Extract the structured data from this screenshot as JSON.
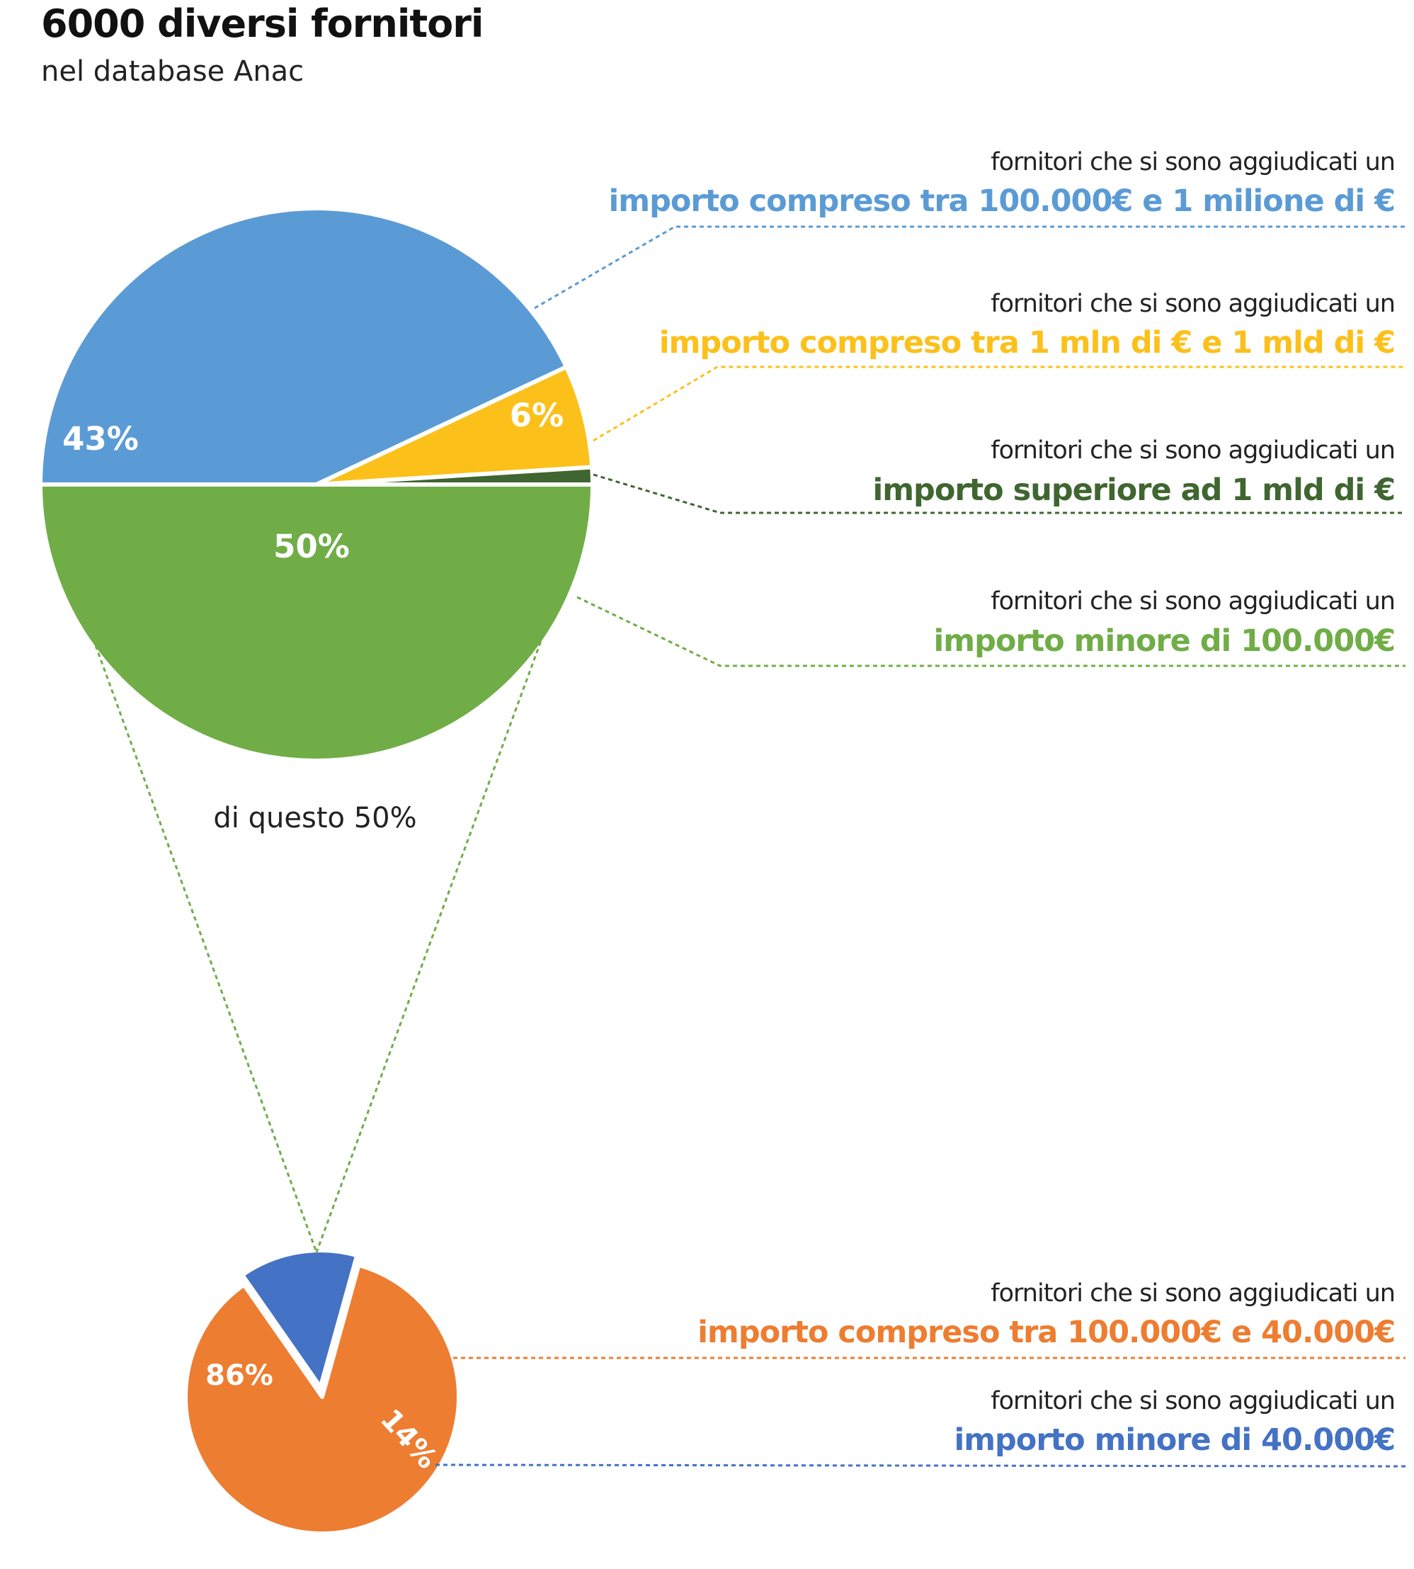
{
  "title": "6000 diversi fornitori",
  "subtitle": "nel database Anac",
  "note": "di questo 50%",
  "colors": {
    "blue": "#5b9bd5",
    "yellow": "#fcc01b",
    "darkgreen": "#3f6630",
    "green": "#70ad47",
    "orange": "#ed7d31",
    "navy": "#4472c4"
  },
  "chart_data": [
    {
      "type": "pie",
      "slices": [
        {
          "label": "43%",
          "value": 43,
          "color": "#5b9bd5",
          "legend_small": "fornitori che si sono aggiudicati un",
          "legend_big": "importo compreso tra 100.000€ e 1 milione di €"
        },
        {
          "label": "6%",
          "value": 6,
          "color": "#fcc01b",
          "legend_small": "fornitori che si sono aggiudicati un",
          "legend_big": "importo compreso tra 1 mln di € e 1 mld di €"
        },
        {
          "label": "",
          "value": 1,
          "color": "#3f6630",
          "legend_small": "fornitori che si sono aggiudicati un",
          "legend_big": "importo superiore ad 1 mld di €"
        },
        {
          "label": "50%",
          "value": 50,
          "color": "#70ad47",
          "legend_small": "fornitori che si sono aggiudicati un",
          "legend_big": "importo minore di 100.000€"
        }
      ]
    },
    {
      "type": "pie",
      "slices": [
        {
          "label": "86%",
          "value": 86,
          "color": "#ed7d31",
          "legend_small": "fornitori che si sono aggiudicati un",
          "legend_big": "importo compreso tra 100.000€ e 40.000€"
        },
        {
          "label": "14%",
          "value": 14,
          "color": "#4472c4",
          "legend_small": "fornitori che si sono aggiudicati un",
          "legend_big": "importo minore di 40.000€"
        }
      ]
    }
  ]
}
